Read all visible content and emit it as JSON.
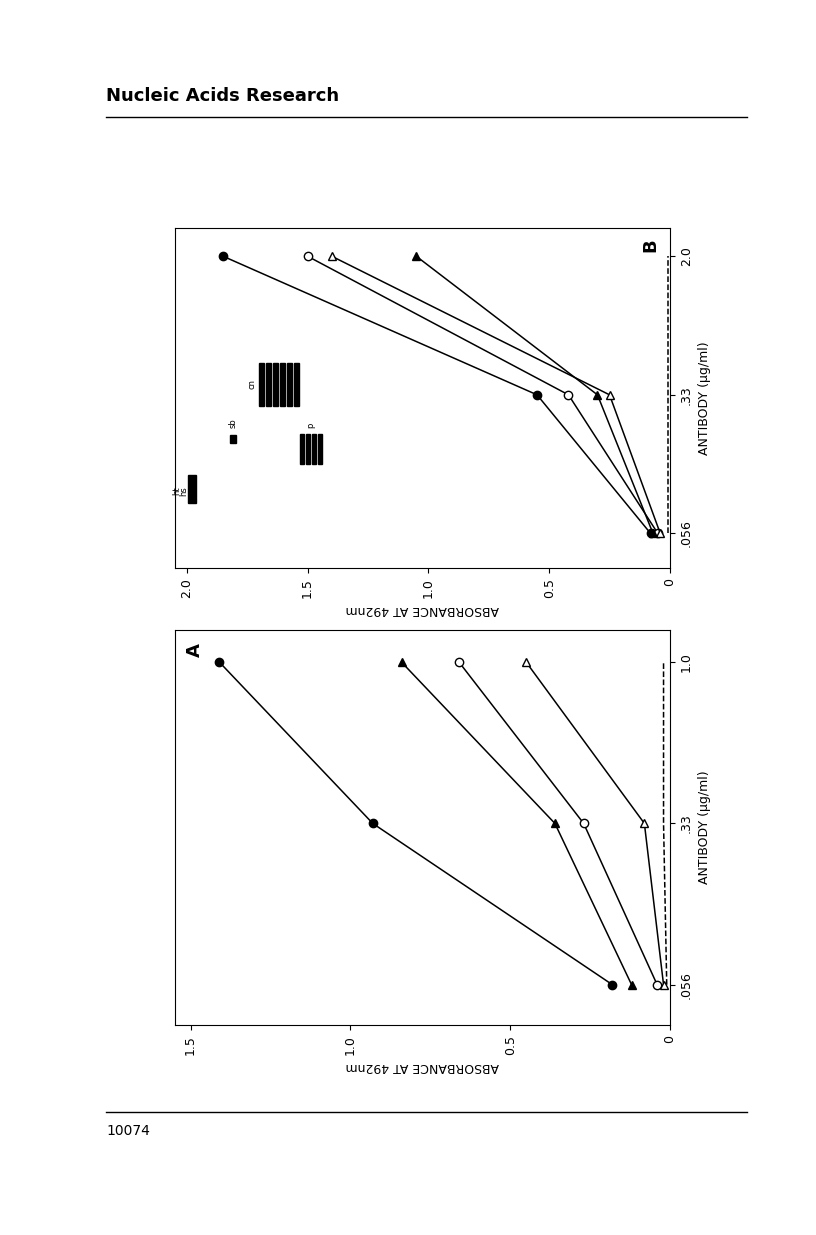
{
  "page": {
    "header": "Nucleic Acids Research",
    "page_number": "10074"
  },
  "chart_data": [
    {
      "type": "line",
      "title": "A",
      "x_label": "ANTIBODY (µg/ml)",
      "y_label": "ABSORBANCE AT 492nm",
      "categories": [
        ".056",
        ".33",
        "1.0"
      ],
      "ylim": [
        0,
        1.55
      ],
      "yticks": [
        0,
        0.5,
        1.0,
        1.5
      ],
      "series": [
        {
          "color": "#000000",
          "marker": "filled_circle",
          "line_style": "solid",
          "values": [
            0.18,
            0.93,
            1.41
          ]
        },
        {
          "color": "#000000",
          "marker": "filled_triangle",
          "line_style": "solid",
          "values": [
            0.12,
            0.36,
            0.84
          ]
        },
        {
          "color": "#000000",
          "marker": "open_circle",
          "line_style": "solid",
          "values": [
            0.04,
            0.27,
            0.66
          ]
        },
        {
          "color": "#000000",
          "marker": "open_triangle",
          "line_style": "solid",
          "values": [
            0.02,
            0.08,
            0.45
          ]
        },
        {
          "color": "#000000",
          "marker": "none",
          "line_style": "dashed",
          "values": [
            0.01,
            0.02,
            0.02
          ]
        }
      ]
    },
    {
      "type": "line",
      "title": "B",
      "x_label": "ANTIBODY (µg/ml)",
      "y_label": "ABSORBANCE AT 492nm",
      "categories": [
        ".056",
        ".33",
        "2.0"
      ],
      "ylim": [
        0,
        2.05
      ],
      "yticks": [
        0,
        0.5,
        1.0,
        1.5,
        2.0
      ],
      "annotations": [
        "ht",
        "hs",
        "cn",
        "sb",
        "p"
      ],
      "series": [
        {
          "color": "#000000",
          "marker": "filled_circle",
          "line_style": "solid",
          "values": [
            0.08,
            0.55,
            1.85
          ]
        },
        {
          "color": "#000000",
          "marker": "open_circle",
          "line_style": "solid",
          "values": [
            0.05,
            0.42,
            1.5
          ]
        },
        {
          "color": "#000000",
          "marker": "open_triangle",
          "line_style": "solid",
          "values": [
            0.04,
            0.25,
            1.4
          ]
        },
        {
          "color": "#000000",
          "marker": "filled_triangle",
          "line_style": "solid",
          "values": [
            0.07,
            0.3,
            1.05
          ]
        },
        {
          "color": "#000000",
          "marker": "none",
          "line_style": "dashed",
          "values": [
            0.01,
            0.01,
            0.01
          ]
        }
      ]
    }
  ]
}
